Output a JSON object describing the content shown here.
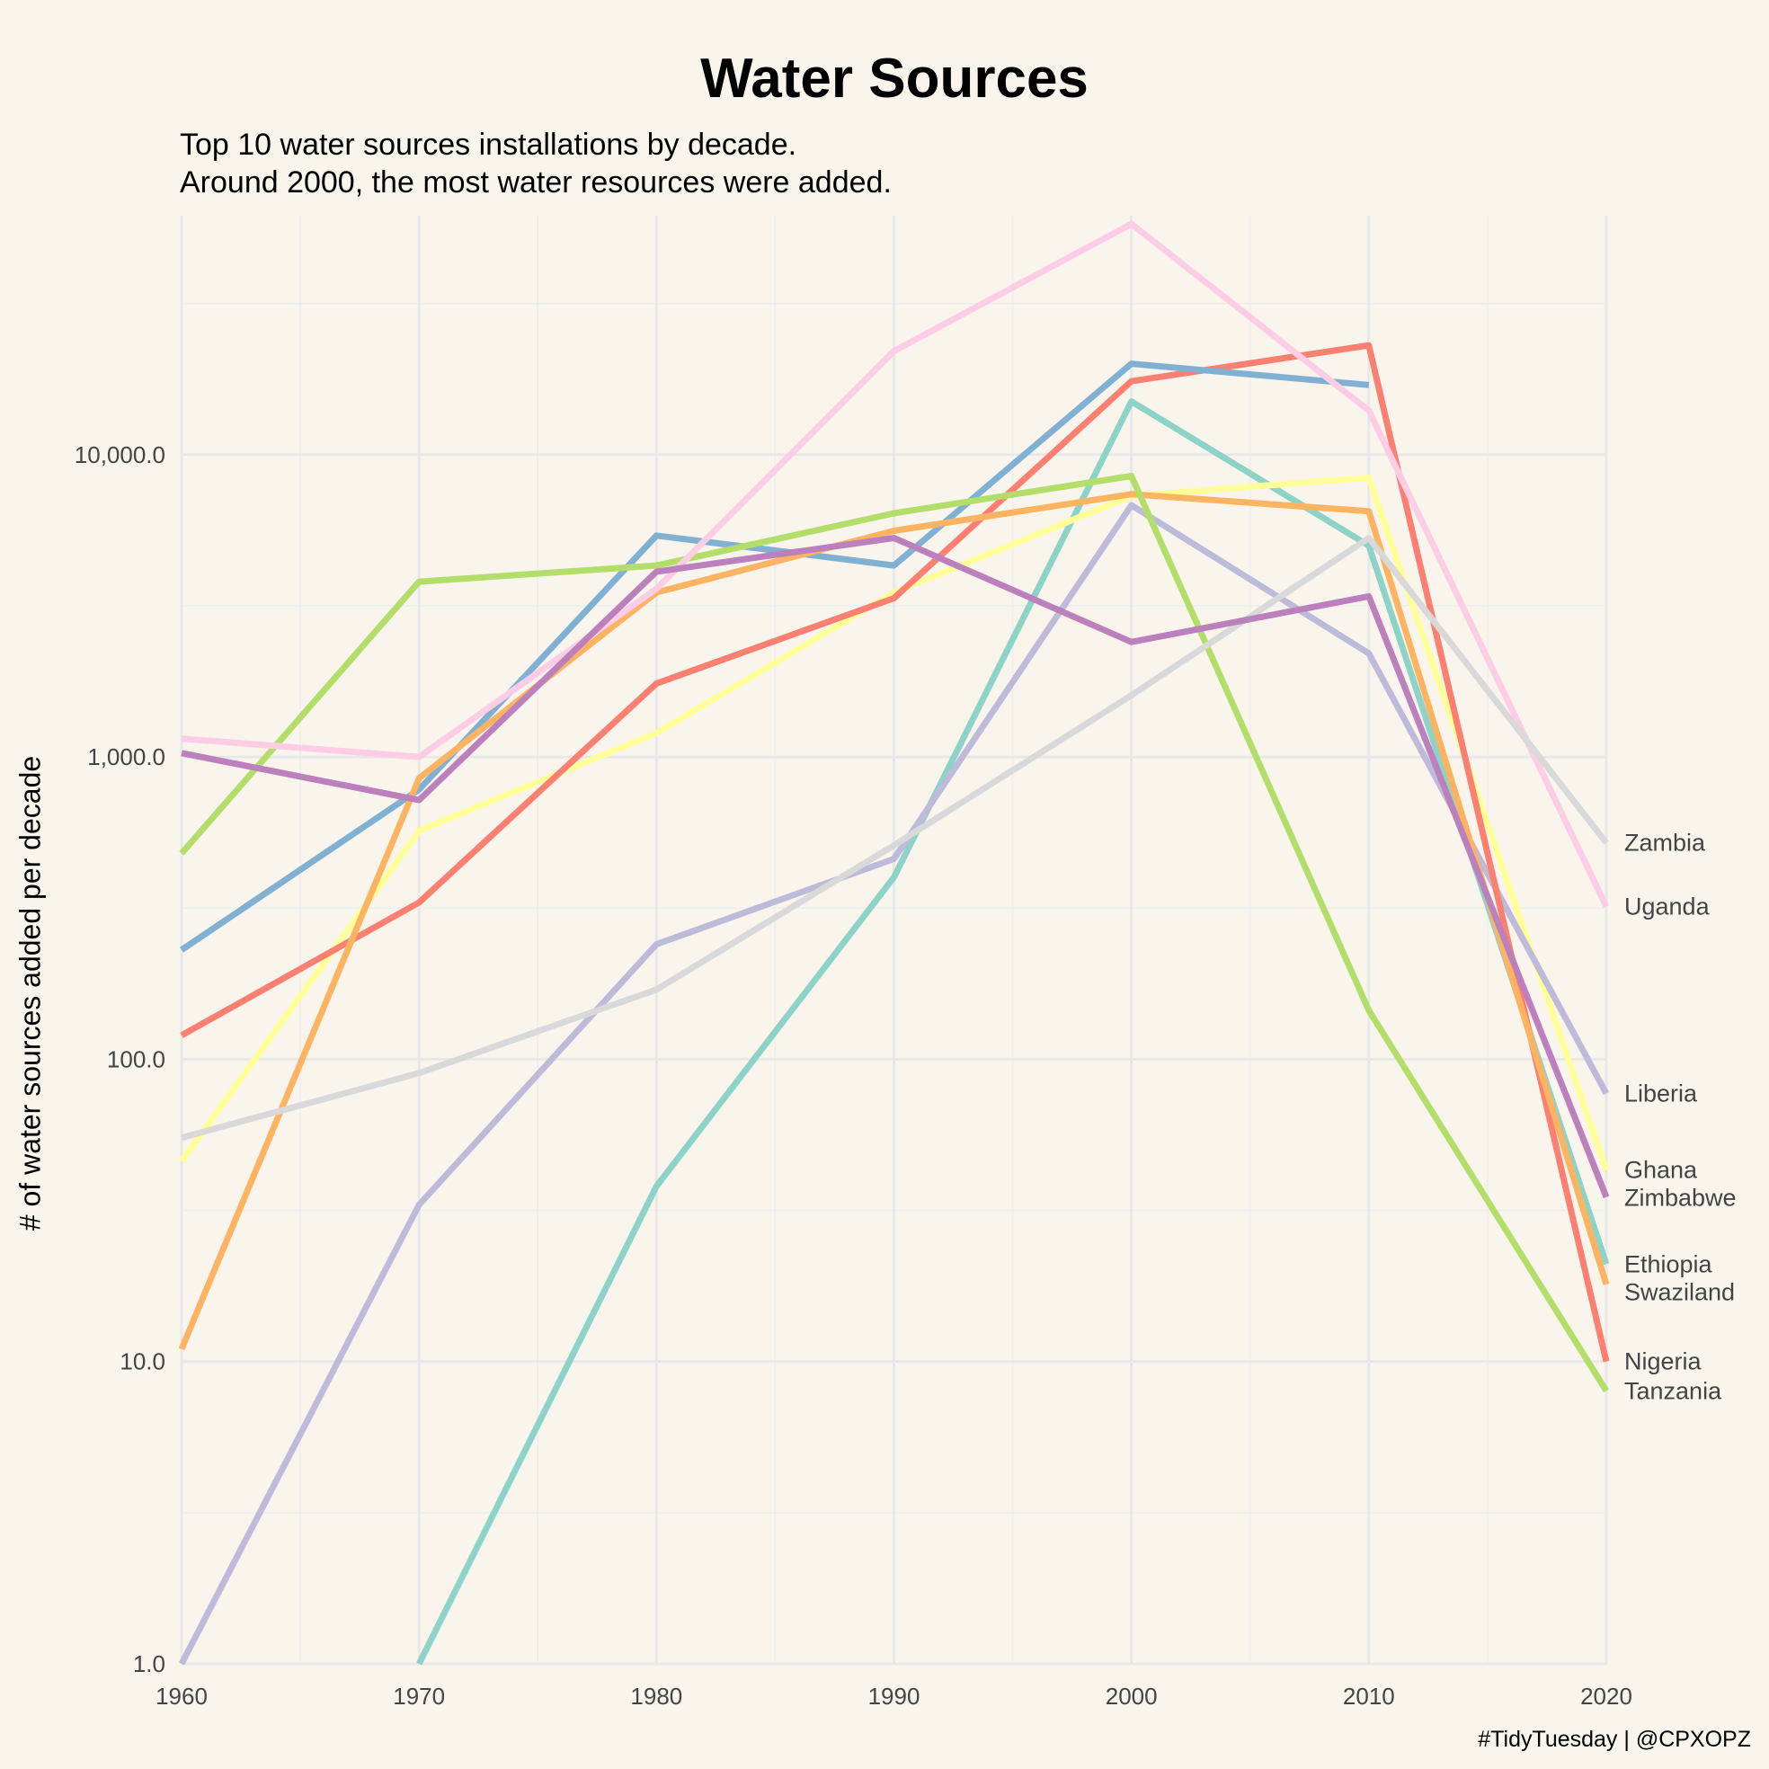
{
  "title": "Water Sources",
  "subtitle_line1": "Top 10 water sources installations by decade.",
  "subtitle_line2": "Around 2000, the most water resources were added.",
  "caption": "#TidyTuesday | @CPXOPZ",
  "chart_data": {
    "type": "line",
    "yscale": "log10",
    "xlabel": "",
    "ylabel": "# of water sources added per decade",
    "xlim": [
      1960,
      2020
    ],
    "ylim": [
      1,
      60000
    ],
    "x": [
      1960,
      1970,
      1980,
      1990,
      2000,
      2010,
      2020
    ],
    "x_ticks": [
      1960,
      1970,
      1980,
      1990,
      2000,
      2010,
      2020
    ],
    "y_ticks": [
      1,
      10,
      100,
      1000,
      10000
    ],
    "y_tick_labels": [
      "1.0",
      "10.0",
      "100.0",
      "1,000.0",
      "10,000.0"
    ],
    "grid": true,
    "series": [
      {
        "name": "Ethiopia",
        "label": "Ethiopia",
        "color": "#8dd3c7",
        "values": [
          null,
          1,
          38,
          400,
          15000,
          5000,
          21
        ]
      },
      {
        "name": "Ghana",
        "label": "Ghana",
        "color": "#ffff99",
        "values": [
          46,
          570,
          1200,
          3500,
          7300,
          8400,
          43
        ]
      },
      {
        "name": "Liberia",
        "label": "Liberia",
        "color": "#bebada",
        "values": [
          1,
          33,
          240,
          460,
          6800,
          2200,
          77
        ]
      },
      {
        "name": "Nigeria",
        "label": "Nigeria",
        "color": "#fb8072",
        "values": [
          120,
          330,
          1750,
          3350,
          17500,
          23000,
          10
        ]
      },
      {
        "name": "Unlabeled (blue)",
        "label": "",
        "color": "#80b1d3",
        "values": [
          230,
          780,
          5400,
          4300,
          20000,
          17000,
          null
        ]
      },
      {
        "name": "Swaziland",
        "label": "Swaziland",
        "color": "#fdb462",
        "values": [
          11,
          850,
          3500,
          5600,
          7400,
          6500,
          18
        ]
      },
      {
        "name": "Tanzania",
        "label": "Tanzania",
        "color": "#b3de69",
        "values": [
          480,
          3800,
          4300,
          6400,
          8500,
          145,
          8
        ]
      },
      {
        "name": "Uganda",
        "label": "Uganda",
        "color": "#fccde5",
        "values": [
          1150,
          1000,
          3600,
          22000,
          58000,
          14000,
          320
        ]
      },
      {
        "name": "Zambia",
        "label": "Zambia",
        "color": "#d9d9d9",
        "values": [
          55,
          90,
          170,
          510,
          1600,
          5300,
          520
        ]
      },
      {
        "name": "Zimbabwe",
        "label": "Zimbabwe",
        "color": "#bc80bd",
        "values": [
          1030,
          720,
          4100,
          5300,
          2400,
          3400,
          35
        ]
      }
    ],
    "end_labels": [
      "Zambia",
      "Uganda",
      "Liberia",
      "Ghana",
      "Zimbabwe",
      "Ethiopia",
      "Swaziland",
      "Nigeria",
      "Tanzania"
    ]
  }
}
